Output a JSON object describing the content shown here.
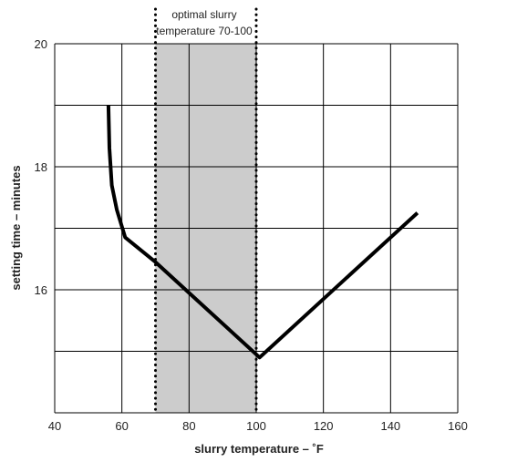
{
  "chart_data": {
    "type": "line",
    "title": "",
    "xlabel": "slurry temperature – ˚F",
    "ylabel": "setting time – minutes",
    "xlim": [
      40,
      160
    ],
    "ylim": [
      14,
      20
    ],
    "xticks": [
      40,
      60,
      80,
      100,
      120,
      140,
      160
    ],
    "yticks": [
      16,
      18,
      20
    ],
    "grid": true,
    "series": [
      {
        "color": "#000000",
        "points": [
          {
            "x": 56,
            "y": 19.0
          },
          {
            "x": 56.3,
            "y": 18.3
          },
          {
            "x": 57,
            "y": 17.7
          },
          {
            "x": 58.5,
            "y": 17.3
          },
          {
            "x": 61,
            "y": 16.85
          },
          {
            "x": 70,
            "y": 16.45
          },
          {
            "x": 80,
            "y": 15.95
          },
          {
            "x": 101,
            "y": 14.9
          },
          {
            "x": 148,
            "y": 17.25
          }
        ]
      }
    ],
    "shaded_region": {
      "x": [
        70,
        100
      ],
      "label_line1": "optimal slurry",
      "label_line2": "temperature 70-100",
      "fill": "#cccccc",
      "border_style": "dotted"
    }
  }
}
